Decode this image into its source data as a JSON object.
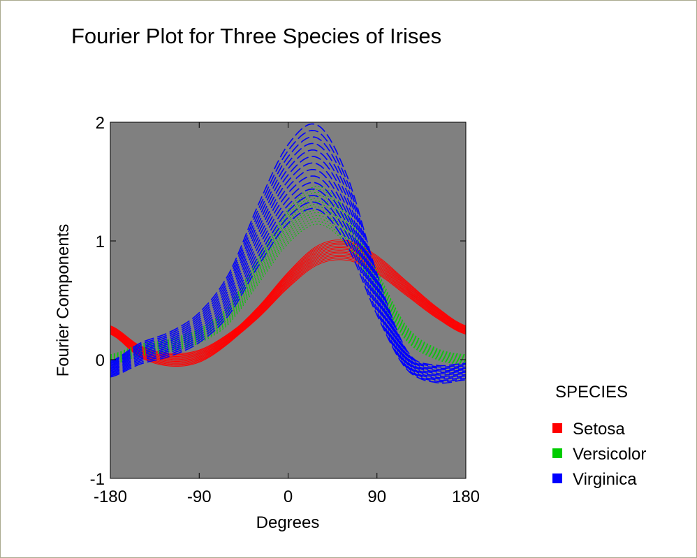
{
  "title": "Fourier Plot for Three Species of Irises",
  "colors": {
    "plot_background": "#808080",
    "Setosa": "#ff0000",
    "Versicolor": "#00cc00",
    "Virginica": "#0000ff"
  },
  "chart_data": {
    "type": "line",
    "title": "Fourier Plot for Three Species of Irises",
    "xlabel": "Degrees",
    "ylabel": "Fourier Components",
    "xlim": [
      -180,
      180
    ],
    "ylim": [
      -1,
      2
    ],
    "xticks": [
      -180,
      -90,
      0,
      90,
      180
    ],
    "yticks": [
      -1,
      0,
      1,
      2
    ],
    "grid": false,
    "legend": {
      "title": "SPECIES",
      "placement": "right",
      "entries": [
        "Setosa",
        "Versicolor",
        "Virginica"
      ]
    },
    "x": [
      -180,
      -150,
      -120,
      -90,
      -60,
      -30,
      0,
      30,
      60,
      90,
      120,
      150,
      180
    ],
    "series": [
      {
        "name": "Setosa",
        "color": "#ff0000",
        "line_style": "solid",
        "mean": [
          0.25,
          0.07,
          0.0,
          0.03,
          0.18,
          0.4,
          0.67,
          0.88,
          0.92,
          0.8,
          0.6,
          0.4,
          0.25
        ],
        "spread": 0.07
      },
      {
        "name": "Versicolor",
        "color": "#00cc00",
        "line_style": "dotted",
        "mean": [
          0.0,
          0.08,
          0.12,
          0.2,
          0.38,
          0.75,
          1.12,
          1.3,
          1.1,
          0.65,
          0.22,
          0.05,
          0.0
        ],
        "spread": 0.09
      },
      {
        "name": "Virginica",
        "color": "#0000ff",
        "line_style": "dashed",
        "mean": [
          -0.08,
          0.05,
          0.13,
          0.27,
          0.55,
          1.05,
          1.48,
          1.62,
          1.25,
          0.55,
          0.0,
          -0.12,
          -0.1
        ],
        "spread": 0.17
      }
    ]
  }
}
